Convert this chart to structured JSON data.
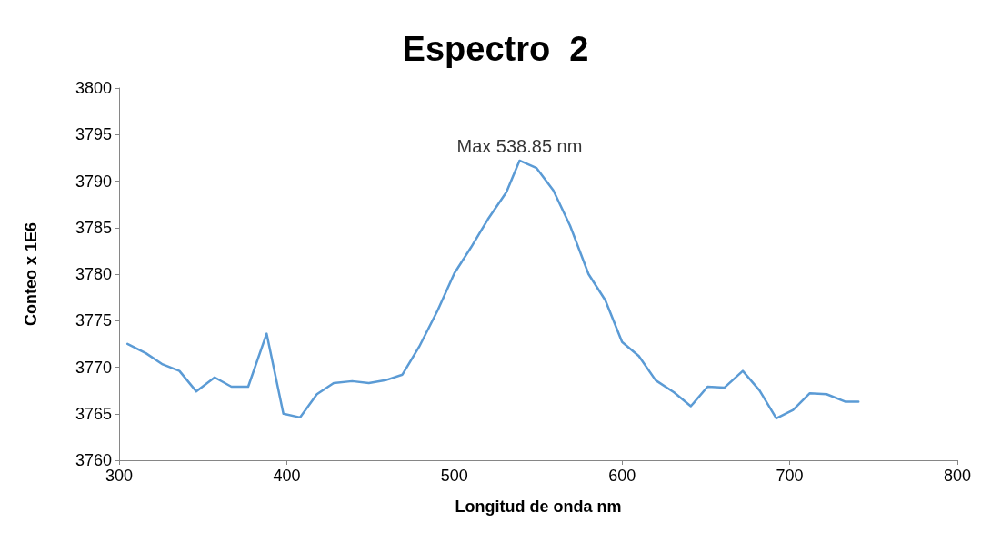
{
  "chart_data": {
    "type": "line",
    "title": "Espectro  2",
    "xlabel": "Longitud de onda nm",
    "ylabel": "Conteo x 1E6",
    "x": [
      305,
      316,
      326,
      336,
      346,
      357,
      367,
      377,
      388,
      398,
      408,
      418,
      428,
      439,
      449,
      459,
      469,
      479,
      490,
      500,
      510,
      520,
      531,
      538.85,
      549,
      559,
      569,
      580,
      590,
      600,
      610,
      620,
      631,
      641,
      651,
      661,
      672,
      682,
      692,
      702,
      712,
      722,
      733,
      741
    ],
    "series": [
      {
        "color": "#5b9bd5",
        "values": [
          3772.5,
          3771.5,
          3770.3,
          3769.6,
          3767.4,
          3768.9,
          3767.9,
          3767.9,
          3773.6,
          3765.0,
          3764.6,
          3767.1,
          3768.3,
          3768.5,
          3768.3,
          3768.6,
          3769.2,
          3772.2,
          3776.1,
          3780.1,
          3782.9,
          3785.9,
          3788.8,
          3792.2,
          3791.4,
          3789.0,
          3785.2,
          3780.0,
          3777.2,
          3772.7,
          3771.2,
          3768.6,
          3767.3,
          3765.8,
          3767.9,
          3767.8,
          3769.6,
          3767.5,
          3764.5,
          3765.4,
          3767.2,
          3767.1,
          3766.3,
          3766.3
        ]
      }
    ],
    "xlim": [
      300,
      800
    ],
    "xticks": [
      300,
      400,
      500,
      600,
      700,
      800
    ],
    "ylim": [
      3760,
      3800
    ],
    "yticks": [
      3760,
      3765,
      3770,
      3775,
      3780,
      3785,
      3790,
      3795,
      3800
    ],
    "annotations": [
      {
        "text": "Max 538.85 nm",
        "x": 538.85,
        "y": 3792.2
      }
    ],
    "grid": false,
    "marker": "none",
    "line_style": "solid"
  }
}
